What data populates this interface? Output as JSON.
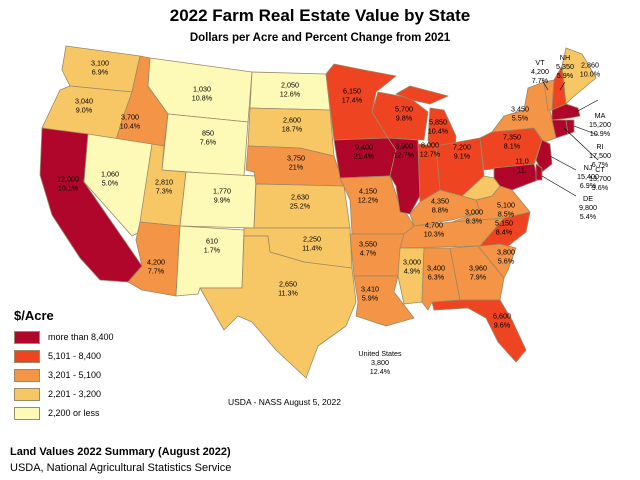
{
  "title": "2022 Farm Real Estate Value by State",
  "subtitle": "Dollars per Acre and Percent Change from 2021",
  "colors": {
    "c5": "#b0062b",
    "c4": "#ee4422",
    "c3": "#f39446",
    "c2": "#f8c765",
    "c1": "#fdf9b6",
    "border": "#9c8866"
  },
  "legend": {
    "title": "$/Acre",
    "items": [
      {
        "label": "more than 8,400",
        "color": "#b0062b"
      },
      {
        "label": "5,101 - 8,400",
        "color": "#ee4422"
      },
      {
        "label": "3,201 - 5,100",
        "color": "#f39446"
      },
      {
        "label": "2,201 - 3,200",
        "color": "#f8c765"
      },
      {
        "label": "2,200 or less",
        "color": "#fdf9b6"
      }
    ]
  },
  "states": [
    {
      "id": "WA",
      "value": "3,100",
      "change": "6.9%",
      "cls": 2
    },
    {
      "id": "OR",
      "value": "3,040",
      "change": "9.0%",
      "cls": 2
    },
    {
      "id": "CA",
      "value": "12,000",
      "change": "10.1%",
      "cls": 5
    },
    {
      "id": "ID",
      "value": "3,700",
      "change": "10.4%",
      "cls": 3
    },
    {
      "id": "NV",
      "value": "1,060",
      "change": "5.0%",
      "cls": 1
    },
    {
      "id": "MT",
      "value": "1,030",
      "change": "10.8%",
      "cls": 1
    },
    {
      "id": "WY",
      "value": "850",
      "change": "7.6%",
      "cls": 1
    },
    {
      "id": "UT",
      "value": "2,810",
      "change": "7.3%",
      "cls": 2
    },
    {
      "id": "CO",
      "value": "1,770",
      "change": "9.9%",
      "cls": 1
    },
    {
      "id": "AZ",
      "value": "4,200",
      "change": "7.7%",
      "cls": 3
    },
    {
      "id": "NM",
      "value": "610",
      "change": "1.7%",
      "cls": 1
    },
    {
      "id": "ND",
      "value": "2,050",
      "change": "12.6%",
      "cls": 1
    },
    {
      "id": "SD",
      "value": "2,600",
      "change": "18.7%",
      "cls": 2
    },
    {
      "id": "NE",
      "value": "3,750",
      "change": "21%",
      "cls": 3
    },
    {
      "id": "KS",
      "value": "2,630",
      "change": "25.2%",
      "cls": 2
    },
    {
      "id": "OK",
      "value": "2,250",
      "change": "11.4%",
      "cls": 2
    },
    {
      "id": "TX",
      "value": "2,650",
      "change": "11.3%",
      "cls": 2
    },
    {
      "id": "MN",
      "value": "6,150",
      "change": "17.4%",
      "cls": 4
    },
    {
      "id": "IA",
      "value": "9,400",
      "change": "21.4%",
      "cls": 5
    },
    {
      "id": "MO",
      "value": "4,150",
      "change": "12.2%",
      "cls": 3
    },
    {
      "id": "AR",
      "value": "3,550",
      "change": "4.7%",
      "cls": 3
    },
    {
      "id": "LA",
      "value": "3,410",
      "change": "5.9%",
      "cls": 3
    },
    {
      "id": "WI",
      "value": "5,700",
      "change": "9.8%",
      "cls": 4
    },
    {
      "id": "IL",
      "value": "8,900",
      "change": "12.7%",
      "cls": 5
    },
    {
      "id": "MI",
      "value": "5,850",
      "change": "10.4%",
      "cls": 4
    },
    {
      "id": "IN",
      "value": "8,000",
      "change": "12.7%",
      "cls": 4
    },
    {
      "id": "OH",
      "value": "7,200",
      "change": "9.1%",
      "cls": 4
    },
    {
      "id": "KY",
      "value": "4,350",
      "change": "8.8%",
      "cls": 3
    },
    {
      "id": "TN",
      "value": "4,700",
      "change": "10.3%",
      "cls": 3
    },
    {
      "id": "MS",
      "value": "3,000",
      "change": "4.9%",
      "cls": 2
    },
    {
      "id": "AL",
      "value": "3,400",
      "change": "6.3%",
      "cls": 3
    },
    {
      "id": "GA",
      "value": "3,960",
      "change": "7.9%",
      "cls": 3
    },
    {
      "id": "FL",
      "value": "6,600",
      "change": "9.6%",
      "cls": 4
    },
    {
      "id": "SC",
      "value": "3,800",
      "change": "5.6%",
      "cls": 3
    },
    {
      "id": "NC",
      "value": "5,150",
      "change": "8.4%",
      "cls": 4
    },
    {
      "id": "VA",
      "value": "5,100",
      "change": "8.5%",
      "cls": 3
    },
    {
      "id": "WV",
      "value": "3,000",
      "change": "8.3%",
      "cls": 2
    },
    {
      "id": "PA",
      "value": "7,350",
      "change": "8.1%",
      "cls": 4
    },
    {
      "id": "NY",
      "value": "3,450",
      "change": "5.5%",
      "cls": 3
    },
    {
      "id": "MD",
      "value": "11,0",
      "change": "11.",
      "cls": 5
    },
    {
      "id": "NJ",
      "value": "15,400",
      "change": "6.9%",
      "cls": 5
    },
    {
      "id": "DE",
      "value": "9,800",
      "change": "5.4%",
      "cls": 5
    },
    {
      "id": "CT",
      "value": "13,700",
      "change": "9.6%",
      "cls": 5
    },
    {
      "id": "RI",
      "value": "17,500",
      "change": "6.7%",
      "cls": 5
    },
    {
      "id": "MA",
      "value": "15,200",
      "change": "10.9%",
      "cls": 5
    },
    {
      "id": "VT",
      "value": "4,200",
      "change": "7.7%",
      "cls": 3
    },
    {
      "id": "NH",
      "value": "5,350",
      "change": "5.9%",
      "cls": 4
    },
    {
      "id": "ME",
      "value": "2,860",
      "change": "10.0%",
      "cls": 2
    }
  ],
  "us_total": {
    "name": "United States",
    "value": "3,800",
    "change": "12.4%"
  },
  "source_note": "USDA - NASS August 5, 2022",
  "footer": {
    "title": "Land Values 2022 Summary (August 2022)",
    "agency": "USDA, National Agricultural Statistics Service"
  }
}
